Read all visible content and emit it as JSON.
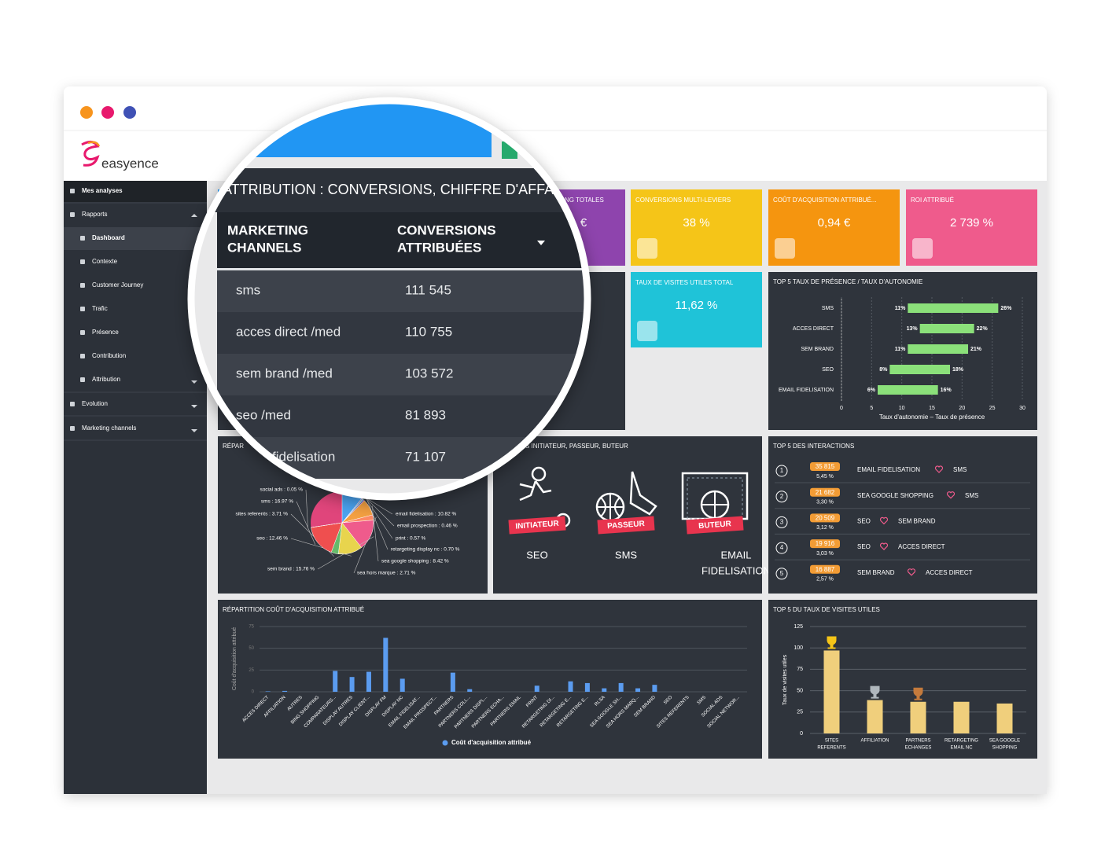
{
  "app": {
    "logo": "easyence"
  },
  "sidebar": [
    "Mes analyses",
    "Rapports",
    "Dashboard",
    "Contexte",
    "Customer Journey",
    "Trafic",
    "Présence",
    "Contribution",
    "Attribution",
    "Evolution",
    "Marketing channels"
  ],
  "kpis": [
    {
      "title": "NG TOTALES",
      "value": "€"
    },
    {
      "title": "CONVERSIONS MULTI-LEVIERS",
      "value": "38 %"
    },
    {
      "title": "COÛT D'ACQUISITION ATTRIBUÉ...",
      "value": "0,94 €"
    },
    {
      "title": "ROI ATTRIBUÉ",
      "value": "2 739 %"
    },
    {
      "title": "TAUX DE VISITES UTILES TOTAL",
      "value": "11,62 %"
    }
  ],
  "magnifier": {
    "title": "ATTRIBUTION : CONVERSIONS, CHIFFRE D'AFFA",
    "columns": [
      [
        "MARKETING",
        "CHANNELS"
      ],
      [
        "CONVERSIONS",
        "ATTRIBUÉES"
      ]
    ],
    "rows": [
      [
        "sms",
        "111 545"
      ],
      [
        "acces direct /med",
        "110 755"
      ],
      [
        "sem brand /med",
        "103 572"
      ],
      [
        "seo /med",
        "81 893"
      ],
      [
        "fidelisation",
        "71 107"
      ]
    ]
  },
  "roles": {
    "title": "S INITIATEUR, PASSEUR, BUTEUR",
    "items": [
      {
        "badge": "INITIATEUR",
        "channel": [
          "SEO"
        ]
      },
      {
        "badge": "PASSEUR",
        "channel": [
          "SMS"
        ]
      },
      {
        "badge": "BUTEUR",
        "channel": [
          "EMAIL",
          "FIDELISATION"
        ]
      }
    ]
  },
  "interactions": {
    "title": "TOP 5 DES INTERACTIONS",
    "rows": [
      {
        "rank": "1",
        "count": "35 815",
        "share": "5,45 %",
        "from": "EMAIL FIDELISATION",
        "to": "SMS"
      },
      {
        "rank": "2",
        "count": "21 682",
        "share": "3,30 %",
        "from": "SEA GOOGLE SHOPPING",
        "to": "SMS"
      },
      {
        "rank": "3",
        "count": "20 509",
        "share": "3,12 %",
        "from": "SEO",
        "to": "SEM BRAND"
      },
      {
        "rank": "4",
        "count": "19 916",
        "share": "3,03 %",
        "from": "SEO",
        "to": "ACCES DIRECT"
      },
      {
        "rank": "5",
        "count": "16 887",
        "share": "2,57 %",
        "from": "SEM BRAND",
        "to": "ACCES DIRECT"
      }
    ]
  },
  "chart_data": [
    {
      "type": "range-bar",
      "title": "TOP 5 TAUX DE PRÉSENCE / TAUX D'AUTONOMIE",
      "categories": [
        "SMS",
        "ACCES DIRECT",
        "SEM BRAND",
        "SEO",
        "EMAIL FIDELISATION"
      ],
      "series": [
        {
          "values": [
            11,
            13,
            11,
            8,
            6
          ],
          "value_labels": [
            "11%",
            "13%",
            "11%",
            "8%",
            "6%"
          ]
        },
        {
          "values": [
            26,
            22,
            21,
            18,
            16
          ],
          "value_labels": [
            "26%",
            "22%",
            "21%",
            "18%",
            "16%"
          ]
        }
      ],
      "color": "#8be07a",
      "xlim": [
        0,
        30
      ],
      "xticks": [
        0,
        5,
        10,
        15,
        20,
        25,
        30
      ],
      "xlabel": "Taux d'autonomie – Taux de présence"
    },
    {
      "type": "pie",
      "title": "RÉPAR",
      "values": [
        10.82,
        0.46,
        0.57,
        0.7,
        8.42,
        2.71,
        15.76,
        12.46,
        3.71,
        16.97,
        0.05
      ],
      "value_labels": [
        "email fidelisation : 10.82 %",
        "email prospection : 0.46 %",
        "print : 0.57 %",
        "retargeting display nc : 0.70 %",
        "sea google shopping : 8.42 %",
        "sea hors marque : 2.71 %",
        "sem brand : 15.76 %",
        "seo : 12.46 %",
        "sites referents : 3.71 %",
        "sms : 16.97 %",
        "social ads : 0.05 %"
      ],
      "colors": [
        "#4aa3f0",
        "#9b59b6",
        "#26c6da",
        "#7e57c2",
        "#f5a142",
        "#ff8a65",
        "#ef5b8c",
        "#e8d44d",
        "#66bb6a",
        "#ef4f4f",
        "#90a4ae"
      ]
    },
    {
      "type": "bar",
      "title": "RÉPARTITION COÛT D'ACQUISITION ATTRIBUÉ",
      "ylabel": "Coût d'acquisition attribué",
      "categories": [
        "ACCES DIRECT",
        "AFFILIATION",
        "AUTRES",
        "BING SHOPPING",
        "COMPARATEURS...",
        "DISPLAY AUTRES",
        "DISPLAY CLIENT...",
        "DISPLAY FM",
        "DISPLAY NC",
        "EMAIL FIDELISAT...",
        "EMAIL PROSPECT...",
        "PARTNERS",
        "PARTNERS COLL...",
        "PARTNERS DISPL...",
        "PARTNERS ECHA...",
        "PARTNERS EMAIL",
        "PRINT",
        "RETARGETING DI...",
        "RETARGETING E...",
        "RETARGETING E...",
        "RLSA",
        "SEA GOOGLE SH...",
        "SEA HORS MARQ...",
        "SEM BRAND",
        "SEO",
        "SITES REFERENTS",
        "SMS",
        "SOCIAL ADS",
        "SOCIAL NETWOR..."
      ],
      "series": [
        {
          "name": "Coût d'acquisition attribué",
          "color": "#5b9cf0",
          "values": [
            0.5,
            1,
            0,
            0,
            24,
            17,
            23,
            62,
            15,
            0,
            0,
            22,
            3,
            0,
            0,
            0,
            7,
            0,
            12,
            10,
            4,
            10,
            4,
            8,
            0,
            0,
            0,
            0,
            0
          ]
        }
      ],
      "ylim": [
        0,
        75
      ],
      "yticks": [
        0,
        25,
        50,
        75
      ],
      "grid": true
    },
    {
      "type": "bar",
      "title": "TOP 5 DU TAUX DE VISITES UTILES",
      "ylabel": "Taux de visites utiles",
      "categories": [
        [
          "SITES",
          "REFERENTS"
        ],
        [
          "AFFILIATION"
        ],
        [
          "PARTNERS",
          "ECHANGES"
        ],
        [
          "RETARGETING",
          "EMAIL NC"
        ],
        [
          "SEA GOOGLE",
          "SHOPPING"
        ]
      ],
      "values": [
        97,
        39,
        37,
        37,
        35
      ],
      "color": "#f0cf7c",
      "ylim": [
        0,
        125
      ],
      "yticks": [
        0,
        25,
        50,
        75,
        100,
        125
      ],
      "grid": true
    }
  ]
}
